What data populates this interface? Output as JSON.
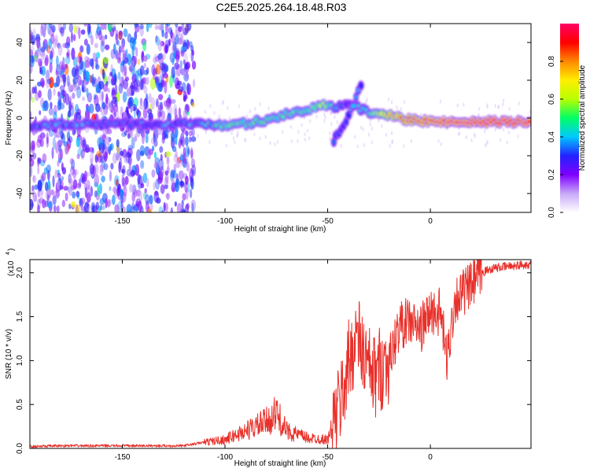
{
  "title": "C2E5.2025.264.18.48.R03",
  "chart_data": [
    {
      "type": "heatmap",
      "name": "Spectrogram",
      "xlabel": "Height of straight line (km)",
      "ylabel": "Frequency (Hz)",
      "xlim": [
        -195,
        49
      ],
      "ylim": [
        -50,
        50
      ],
      "xticks": [
        -150,
        -100,
        -50,
        0
      ],
      "yticks": [
        -40,
        -20,
        0,
        20,
        40
      ],
      "colorbar": {
        "label": "Normalized spectral amplitude",
        "range": [
          0,
          1
        ],
        "ticks": [
          "0.0",
          "0.2",
          "0.4",
          "0.6",
          "0.8"
        ],
        "colormap": [
          "#ffffff",
          "#c8a8f8",
          "#7f00ff",
          "#2222ff",
          "#00c8ff",
          "#00ff66",
          "#b8ff00",
          "#ffee00",
          "#ff8800",
          "#ff0000",
          "#ff0066"
        ]
      },
      "ridge": {
        "x": [
          -195,
          -170,
          -150,
          -130,
          -115,
          -100,
          -90,
          -80,
          -70,
          -60,
          -52,
          -46,
          -40,
          -30,
          -20,
          -10,
          0,
          10,
          25,
          49
        ],
        "freq": [
          -4,
          -3,
          -3,
          -4,
          -3,
          -4,
          -3,
          -1,
          2,
          4,
          7,
          5,
          8,
          3,
          1,
          -1,
          -2,
          -2,
          -2,
          -2
        ],
        "amplitude": [
          0.35,
          0.35,
          0.3,
          0.35,
          0.35,
          0.5,
          0.5,
          0.5,
          0.5,
          0.5,
          0.6,
          0.4,
          0.3,
          0.45,
          0.75,
          0.85,
          0.9,
          0.95,
          0.97,
          0.97
        ]
      },
      "branches": [
        {
          "x": [
            -47,
            -40,
            -33
          ],
          "freq": [
            -12,
            0,
            20
          ],
          "amplitude": [
            0.3,
            0.35,
            0.3
          ]
        }
      ],
      "noise_region": {
        "x": [
          -195,
          -115
        ],
        "freq": [
          -50,
          50
        ],
        "amplitude": 0.15
      }
    },
    {
      "type": "line",
      "name": "SNR",
      "xlabel": "Height of straight line (km)",
      "ylabel": "SNR (10 * v/v)",
      "y_scale_label": "(x10",
      "y_scale_exp": "4",
      "xlim": [
        -195,
        49
      ],
      "ylim": [
        0,
        2.15
      ],
      "xticks": [
        -150,
        -100,
        -50,
        0
      ],
      "yticks": [
        "0.0",
        "0.5",
        "1.0",
        "1.5",
        "2.0"
      ],
      "color": "#e8302a",
      "x": [
        -195,
        -180,
        -160,
        -140,
        -120,
        -110,
        -100,
        -90,
        -80,
        -75,
        -70,
        -60,
        -50,
        -44,
        -40,
        -36,
        -33,
        -30,
        -27,
        -25,
        -20,
        -15,
        -10,
        -5,
        0,
        5,
        8,
        12,
        20,
        25,
        30,
        40,
        49
      ],
      "y": [
        0.02,
        0.03,
        0.03,
        0.03,
        0.03,
        0.07,
        0.1,
        0.2,
        0.3,
        0.4,
        0.2,
        0.12,
        0.1,
        0.5,
        0.95,
        1.3,
        1.1,
        0.9,
        0.8,
        0.9,
        1.0,
        1.4,
        1.45,
        1.35,
        1.55,
        1.55,
        1.0,
        1.7,
        1.85,
        2.0,
        2.05,
        2.08,
        2.1
      ]
    }
  ]
}
